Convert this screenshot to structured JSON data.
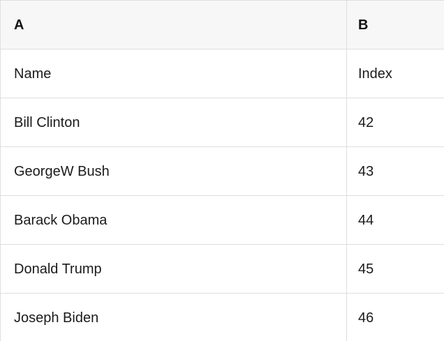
{
  "colors": {
    "header_bg": "#f7f7f7",
    "row_bg": "#ffffff",
    "border": "#dedede",
    "text": "#1b1b1b"
  },
  "table": {
    "column_headers": [
      "A",
      "B"
    ],
    "rows": [
      {
        "a": "Name",
        "b": "Index"
      },
      {
        "a": "Bill Clinton",
        "b": "42"
      },
      {
        "a": "GeorgeW Bush",
        "b": "43"
      },
      {
        "a": "Barack Obama",
        "b": "44"
      },
      {
        "a": "Donald Trump",
        "b": "45"
      },
      {
        "a": "Joseph Biden",
        "b": "46"
      }
    ]
  }
}
